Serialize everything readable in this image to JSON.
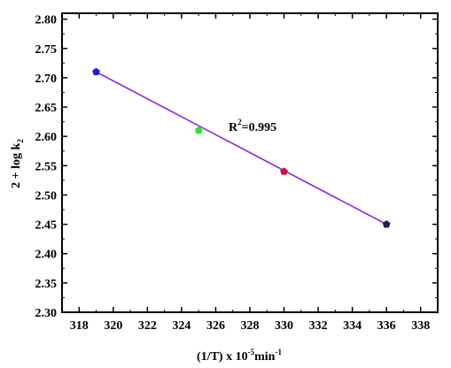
{
  "chart_data": {
    "type": "scatter",
    "xlabel_parts": {
      "base": "(1/T) x 10",
      "exp": "-5",
      "unit": "min",
      "unit_exp": "-1"
    },
    "ylabel_parts": {
      "base": "2 + log k",
      "sub": "2"
    },
    "annotation_parts": {
      "base": "R",
      "exp": "2",
      "rest": "=0.995"
    },
    "xlim": [
      317,
      339
    ],
    "ylim": [
      2.3,
      2.81
    ],
    "x_ticks": [
      "318",
      "320",
      "322",
      "324",
      "326",
      "328",
      "330",
      "332",
      "334",
      "336",
      "338"
    ],
    "y_ticks": [
      "2.30",
      "2.35",
      "2.40",
      "2.45",
      "2.50",
      "2.55",
      "2.60",
      "2.65",
      "2.70",
      "2.75",
      "2.80"
    ],
    "points": [
      {
        "x": 319,
        "y": 2.71,
        "color": "#1f1fd0"
      },
      {
        "x": 325,
        "y": 2.61,
        "color": "#33e033"
      },
      {
        "x": 330,
        "y": 2.54,
        "color": "#cc1040"
      },
      {
        "x": 336,
        "y": 2.45,
        "color": "#202050"
      }
    ],
    "fit_line": {
      "x": [
        319,
        336
      ],
      "y": [
        2.71,
        2.45
      ],
      "color": "#8a1fd6"
    },
    "grid": false,
    "legend": "none"
  }
}
